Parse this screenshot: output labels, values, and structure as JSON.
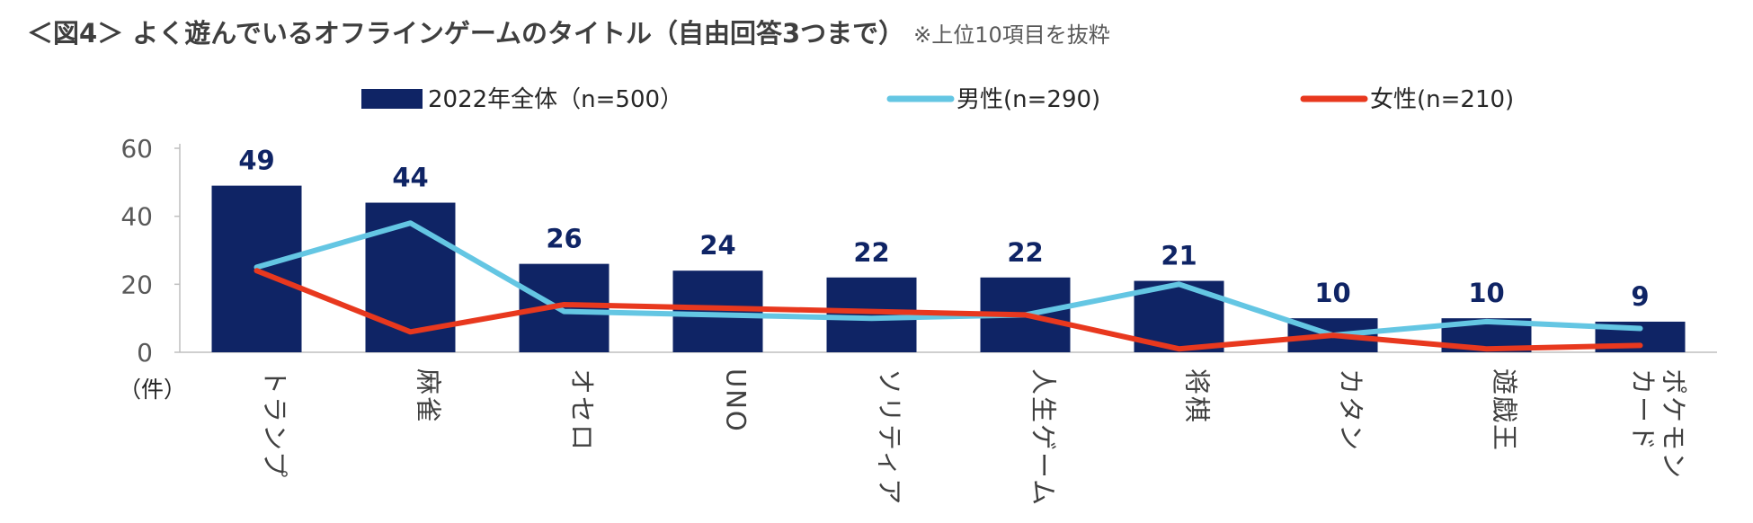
{
  "chart_data": {
    "type": "bar",
    "title": "＜図4＞ よく遊んでいるオフラインゲームのタイトル（自由回答3つまで）",
    "subtitle": "※上位10項目を抜粋",
    "unit_label": "（件）",
    "categories": [
      "トランプ",
      "麻雀",
      "オセロ",
      "UNO",
      "ソリティア",
      "人生ゲーム",
      "将棋",
      "カタン",
      "遊戯王",
      "ポケモンカード"
    ],
    "category_lines": [
      [
        "トランプ"
      ],
      [
        "麻雀"
      ],
      [
        "オセロ"
      ],
      [
        "UNO"
      ],
      [
        "ソリティア"
      ],
      [
        "人生ゲーム"
      ],
      [
        "将棋"
      ],
      [
        "カタン"
      ],
      [
        "遊戯王"
      ],
      [
        "ポケモン",
        "カード"
      ]
    ],
    "ylim": [
      0,
      60
    ],
    "yticks": [
      0,
      20,
      40,
      60
    ],
    "legend_position": "top",
    "series": [
      {
        "name": "2022年全体（n=500）",
        "kind": "bar",
        "color": "#0f2465",
        "values": [
          49,
          44,
          26,
          24,
          22,
          22,
          21,
          10,
          10,
          9
        ],
        "labels": [
          "49",
          "44",
          "26",
          "24",
          "22",
          "22",
          "21",
          "10",
          "10",
          "9"
        ]
      },
      {
        "name": "男性(n=290)",
        "kind": "line",
        "color": "#64c6e3",
        "values": [
          25,
          38,
          12,
          11,
          10,
          11,
          20,
          5,
          9,
          7
        ]
      },
      {
        "name": "女性(n=210)",
        "kind": "line",
        "color": "#e8381e",
        "values": [
          24,
          6,
          14,
          13,
          12,
          11,
          1,
          5,
          1,
          2
        ]
      }
    ]
  }
}
